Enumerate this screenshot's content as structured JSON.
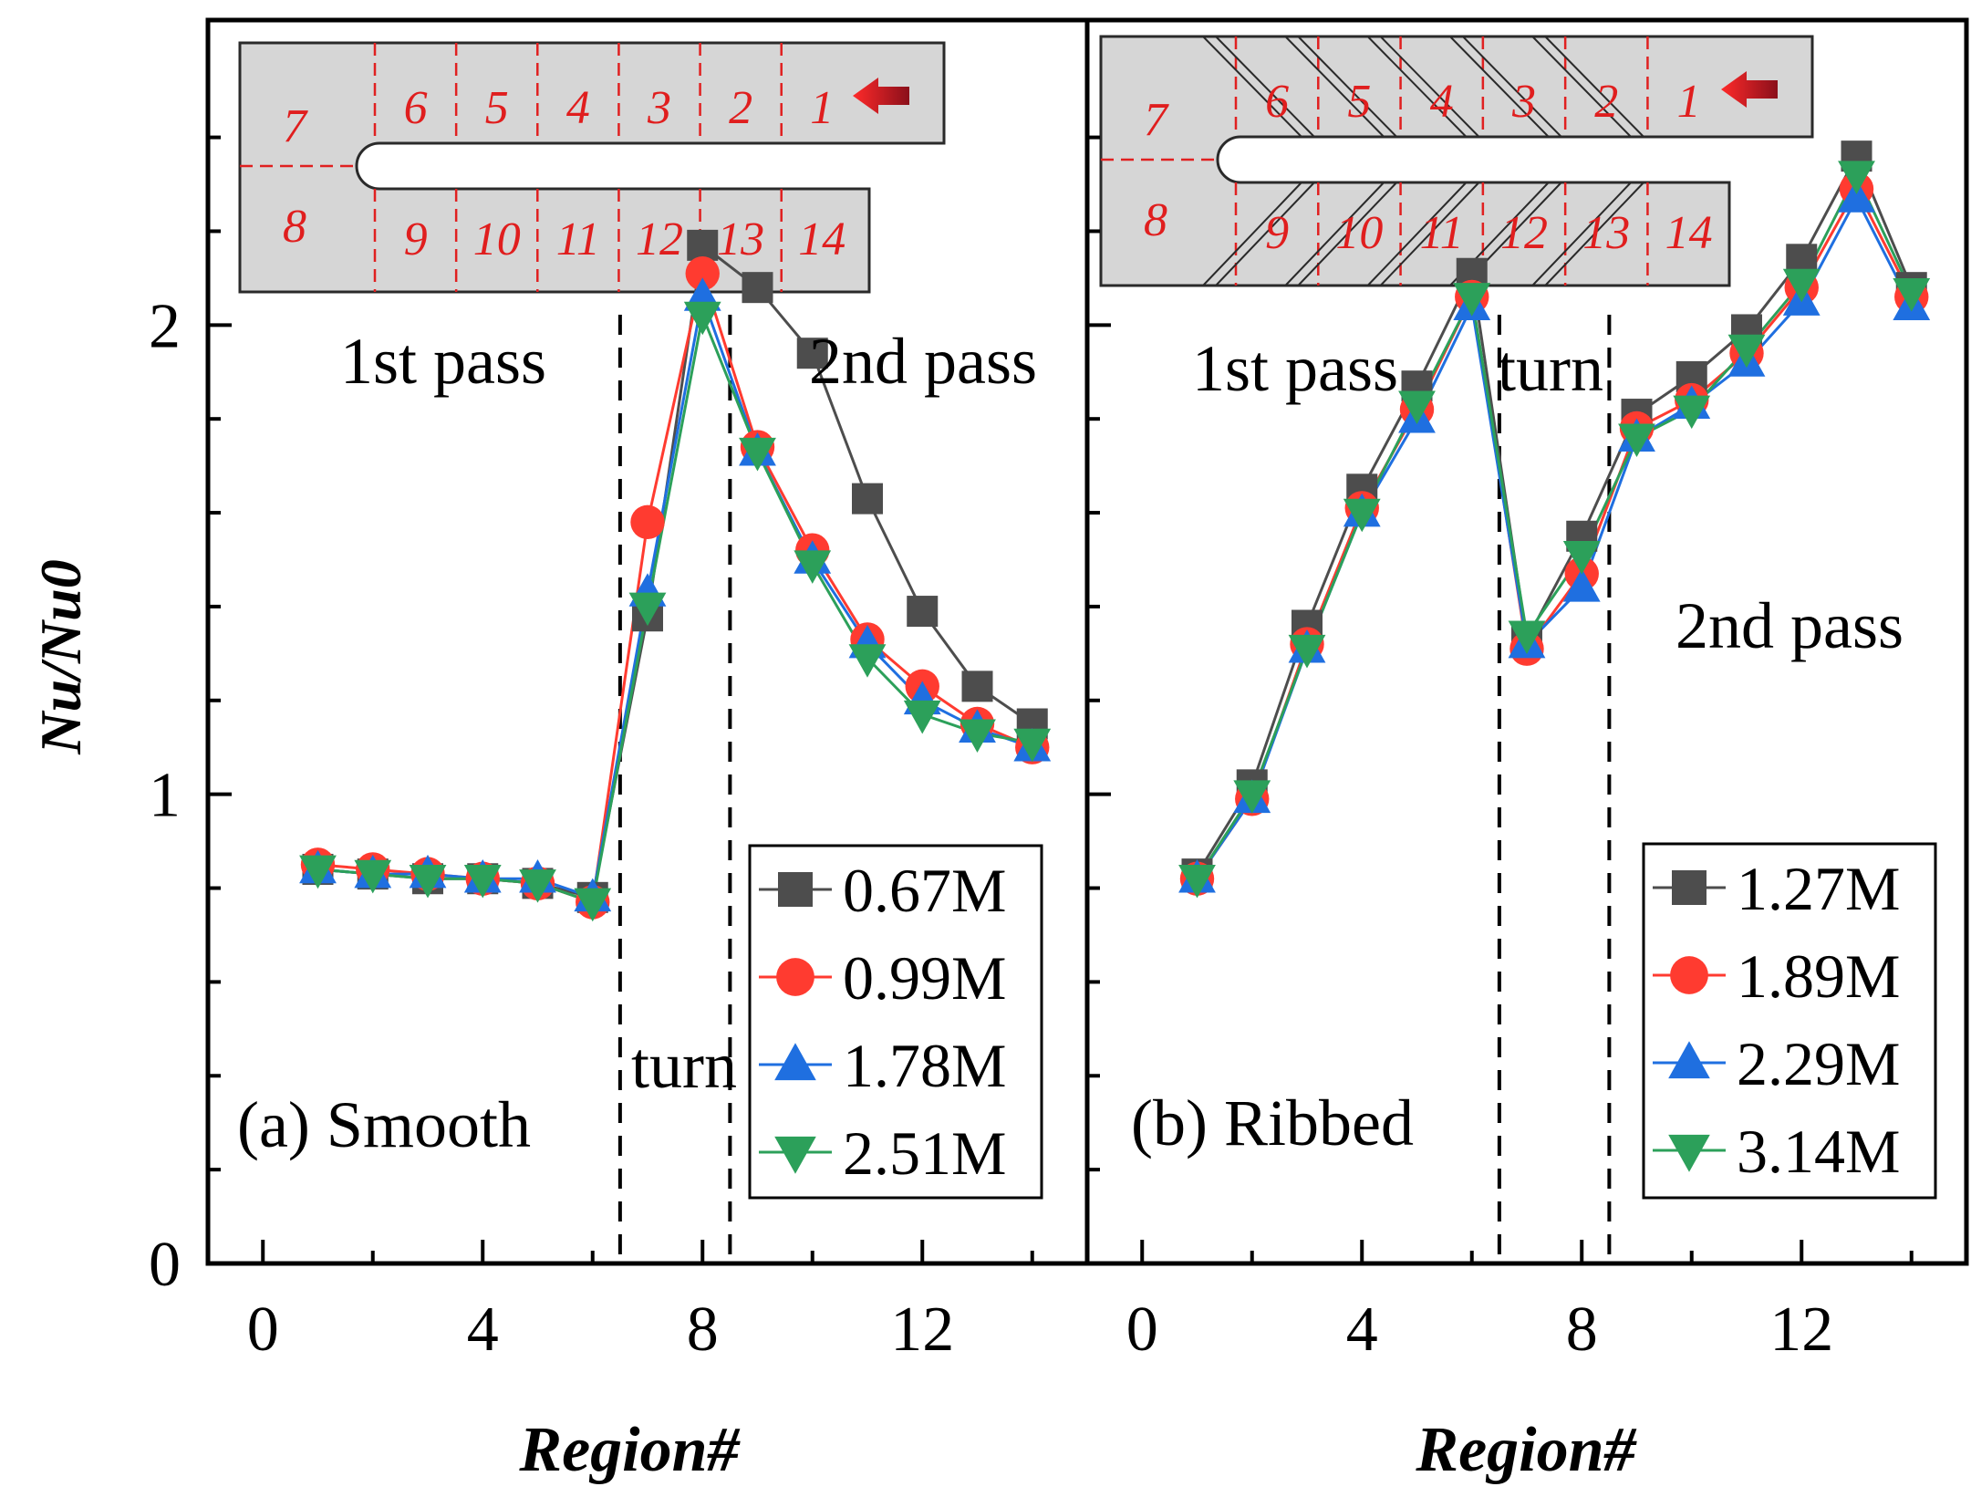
{
  "figure": {
    "ylabel": "Nu/Nu0",
    "xlabel": "Region#"
  },
  "chart_data": [
    {
      "type": "line",
      "panel_label": "(a) Smooth",
      "xlabel": "Region#",
      "ylabel": "Nu/Nu0",
      "xlim": [
        -1,
        15
      ],
      "ylim": [
        0,
        2.65
      ],
      "xticks": [
        0,
        4,
        8,
        12
      ],
      "yticks": [
        0,
        1,
        2
      ],
      "x": [
        1,
        2,
        3,
        4,
        5,
        6,
        7,
        8,
        9,
        10,
        11,
        12,
        13,
        14
      ],
      "series": [
        {
          "name": "0.67M",
          "color": "#4d4d4d",
          "marker": "square",
          "values": [
            0.84,
            0.83,
            0.82,
            0.82,
            0.81,
            0.78,
            1.38,
            2.17,
            2.08,
            1.94,
            1.63,
            1.39,
            1.23,
            1.15
          ]
        },
        {
          "name": "0.99M",
          "color": "#ff3b30",
          "marker": "circle",
          "values": [
            0.85,
            0.84,
            0.83,
            0.82,
            0.81,
            0.77,
            1.58,
            2.11,
            1.74,
            1.52,
            1.33,
            1.23,
            1.15,
            1.1
          ]
        },
        {
          "name": "1.78M",
          "color": "#1f6fe0",
          "marker": "triangle-up",
          "values": [
            0.84,
            0.83,
            0.83,
            0.82,
            0.82,
            0.78,
            1.43,
            2.06,
            1.73,
            1.5,
            1.32,
            1.2,
            1.14,
            1.1
          ]
        },
        {
          "name": "2.51M",
          "color": "#2ca05a",
          "marker": "triangle-down",
          "values": [
            0.84,
            0.83,
            0.82,
            0.82,
            0.81,
            0.77,
            1.4,
            2.02,
            1.73,
            1.49,
            1.29,
            1.17,
            1.13,
            1.11
          ]
        }
      ],
      "dividers": [
        6.5,
        8.5
      ],
      "annotations": [
        "1st pass",
        "2nd pass",
        "turn"
      ],
      "inset": {
        "top_regions": [
          "7",
          "6",
          "5",
          "4",
          "3",
          "2",
          "1"
        ],
        "bottom_regions": [
          "8",
          "9",
          "10",
          "11",
          "12",
          "13",
          "14"
        ],
        "ribbed": false
      }
    },
    {
      "type": "line",
      "panel_label": "(b) Ribbed",
      "xlabel": "Region#",
      "ylabel": "Nu/Nu0",
      "xlim": [
        -1,
        15
      ],
      "ylim": [
        0,
        2.65
      ],
      "xticks": [
        0,
        4,
        8,
        12
      ],
      "yticks": [
        0,
        1,
        2
      ],
      "x": [
        1,
        2,
        3,
        4,
        5,
        6,
        7,
        8,
        9,
        10,
        11,
        12,
        13,
        14
      ],
      "series": [
        {
          "name": "1.27M",
          "color": "#4d4d4d",
          "marker": "square",
          "values": [
            0.83,
            1.02,
            1.36,
            1.65,
            1.87,
            2.11,
            1.33,
            1.55,
            1.81,
            1.89,
            1.99,
            2.14,
            2.36,
            2.08
          ]
        },
        {
          "name": "1.89M",
          "color": "#ff3b30",
          "marker": "circle",
          "values": [
            0.82,
            0.99,
            1.32,
            1.61,
            1.82,
            2.06,
            1.31,
            1.47,
            1.78,
            1.84,
            1.94,
            2.08,
            2.29,
            2.06
          ]
        },
        {
          "name": "2.29M",
          "color": "#1f6fe0",
          "marker": "triangle-up",
          "values": [
            0.82,
            0.99,
            1.31,
            1.6,
            1.8,
            2.04,
            1.32,
            1.44,
            1.76,
            1.83,
            1.92,
            2.05,
            2.27,
            2.04
          ]
        },
        {
          "name": "3.14M",
          "color": "#2ca05a",
          "marker": "triangle-down",
          "values": [
            0.82,
            1.0,
            1.31,
            1.6,
            1.83,
            2.06,
            1.34,
            1.51,
            1.76,
            1.82,
            1.95,
            2.09,
            2.32,
            2.07
          ]
        }
      ],
      "dividers": [
        6.5,
        8.5
      ],
      "annotations": [
        "1st pass",
        "turn",
        "2nd pass"
      ],
      "inset": {
        "top_regions": [
          "7",
          "6",
          "5",
          "4",
          "3",
          "2",
          "1"
        ],
        "bottom_regions": [
          "8",
          "9",
          "10",
          "11",
          "12",
          "13",
          "14"
        ],
        "ribbed": true
      }
    }
  ]
}
